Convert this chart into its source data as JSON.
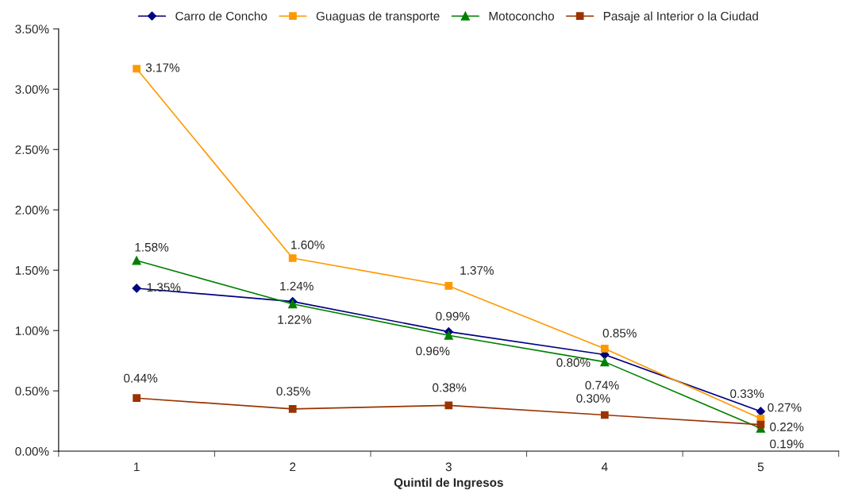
{
  "chart_data": {
    "type": "line",
    "xlabel": "Quintil de Ingresos",
    "categories": [
      "1",
      "2",
      "3",
      "4",
      "5"
    ],
    "series": [
      {
        "name": "Carro de Concho",
        "color": "#000080",
        "marker": "diamond",
        "values": [
          1.35,
          1.24,
          0.99,
          0.8,
          0.33
        ],
        "value_labels": [
          "1.35%",
          "1.24%",
          "0.99%",
          "0.80%",
          "0.33%"
        ]
      },
      {
        "name": "Guaguas de transporte",
        "color": "#ff9900",
        "marker": "square",
        "values": [
          3.17,
          1.6,
          1.37,
          0.85,
          0.27
        ],
        "value_labels": [
          "3.17%",
          "1.60%",
          "1.37%",
          "0.85%",
          "0.27%"
        ]
      },
      {
        "name": "Motoconcho",
        "color": "#008000",
        "marker": "triangle",
        "values": [
          1.58,
          1.22,
          0.96,
          0.74,
          0.19
        ],
        "value_labels": [
          "1.58%",
          "1.22%",
          "0.96%",
          "0.74%",
          "0.19%"
        ]
      },
      {
        "name": "Pasaje al Interior o la Ciudad",
        "color": "#993300",
        "marker": "square",
        "values": [
          0.44,
          0.35,
          0.38,
          0.3,
          0.22
        ],
        "value_labels": [
          "0.44%",
          "0.35%",
          "0.38%",
          "0.30%",
          "0.22%"
        ]
      }
    ],
    "ylim": [
      0,
      3.5
    ],
    "yticks": [
      {
        "value": 0,
        "label": "0.00%"
      },
      {
        "value": 0.5,
        "label": "0.50%"
      },
      {
        "value": 1.0,
        "label": "1.00%"
      },
      {
        "value": 1.5,
        "label": "1.50%"
      },
      {
        "value": 2.0,
        "label": "2.00%"
      },
      {
        "value": 2.5,
        "label": "2.50%"
      },
      {
        "value": 3.0,
        "label": "3.00%"
      },
      {
        "value": 3.5,
        "label": "3.50%"
      }
    ],
    "grid": false,
    "legend": "top",
    "line_style": "solid"
  }
}
